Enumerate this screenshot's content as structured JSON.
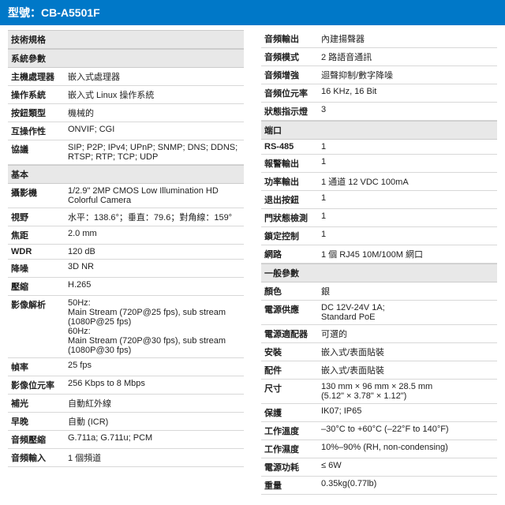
{
  "title": "型號：CB-A5501F",
  "left": {
    "sections": [
      {
        "header": "技術規格",
        "rows": []
      },
      {
        "header": "系統參數",
        "rows": [
          {
            "label": "主機處理器",
            "value": "嵌入式處理器"
          },
          {
            "label": "操作系統",
            "value": "嵌入式 Linux 操作系統"
          },
          {
            "label": "按鈕類型",
            "value": "機械的"
          },
          {
            "label": "互操作性",
            "value": "ONVIF; CGI"
          },
          {
            "label": "協議",
            "value": "SIP; P2P; IPv4; UPnP; SNMP; DNS; DDNS; RTSP; RTP; TCP; UDP"
          }
        ]
      },
      {
        "header": "基本",
        "rows": [
          {
            "label": "攝影機",
            "value": "1/2.9\" 2MP CMOS Low Illumination HD Colorful Camera"
          },
          {
            "label": "視野",
            "value": "水平：138.6°；垂直：79.6；對角線：159°"
          },
          {
            "label": "焦距",
            "value": "2.0 mm"
          },
          {
            "label": "WDR",
            "value": "120 dB"
          },
          {
            "label": "降噪",
            "value": "3D NR"
          },
          {
            "label": "壓縮",
            "value": "H.265"
          },
          {
            "label": "影像解析",
            "value": "50Hz:\nMain Stream (720P@25 fps), sub stream (1080P@25 fps)\n60Hz:\nMain Stream (720P@30 fps), sub stream (1080P@30 fps)"
          },
          {
            "label": "幀率",
            "value": "25 fps"
          },
          {
            "label": "影像位元率",
            "value": "256 Kbps to 8 Mbps"
          },
          {
            "label": "補光",
            "value": "自動紅外線"
          },
          {
            "label": "早晚",
            "value": "自動 (ICR)"
          },
          {
            "label": "音頻壓縮",
            "value": "G.711a; G.711u; PCM"
          },
          {
            "label": "音頻輸入",
            "value": "1 個頻道"
          }
        ]
      }
    ]
  },
  "right": {
    "sections": [
      {
        "header": null,
        "rows": [
          {
            "label": "音頻輸出",
            "value": "內建揚聲器"
          },
          {
            "label": "音頻模式",
            "value": "2 路語音通訊"
          },
          {
            "label": "音頻增強",
            "value": "迴聲抑制/數字降噪"
          },
          {
            "label": "音頻位元率",
            "value": "16 KHz, 16 Bit"
          },
          {
            "label": "狀態指示燈",
            "value": "3"
          }
        ]
      },
      {
        "header": "端口",
        "rows": [
          {
            "label": "RS-485",
            "value": "1"
          },
          {
            "label": "報警輸出",
            "value": "1"
          },
          {
            "label": "功率輸出",
            "value": "1 通道  12 VDC 100mA"
          },
          {
            "label": "退出按鈕",
            "value": "1"
          },
          {
            "label": "門狀態檢測",
            "value": "1"
          },
          {
            "label": "鎖定控制",
            "value": "1"
          },
          {
            "label": "網路",
            "value": "1 個 RJ45 10M/100M 網口"
          }
        ]
      },
      {
        "header": "一般參數",
        "rows": [
          {
            "label": "顏色",
            "value": "銀"
          },
          {
            "label": "電源供應",
            "value": "DC 12V-24V 1A;\nStandard PoE"
          },
          {
            "label": "電源適配器",
            "value": "可選的"
          },
          {
            "label": "安裝",
            "value": "嵌入式/表面貼裝"
          },
          {
            "label": "配件",
            "value": "嵌入式/表面貼裝"
          },
          {
            "label": "尺寸",
            "value": "130 mm × 96 mm × 28.5 mm\n  (5.12\" × 3.78\" × 1.12\")"
          },
          {
            "label": "保護",
            "value": "IK07; IP65"
          },
          {
            "label": "工作溫度",
            "value": "–30°C to +60°C (–22°F to 140°F)"
          },
          {
            "label": "工作濕度",
            "value": "10%–90% (RH, non-condensing)"
          },
          {
            "label": "電源功耗",
            "value": "≤ 6W"
          },
          {
            "label": "重量",
            "value": "0.35kg(0.77lb)"
          }
        ]
      }
    ]
  }
}
